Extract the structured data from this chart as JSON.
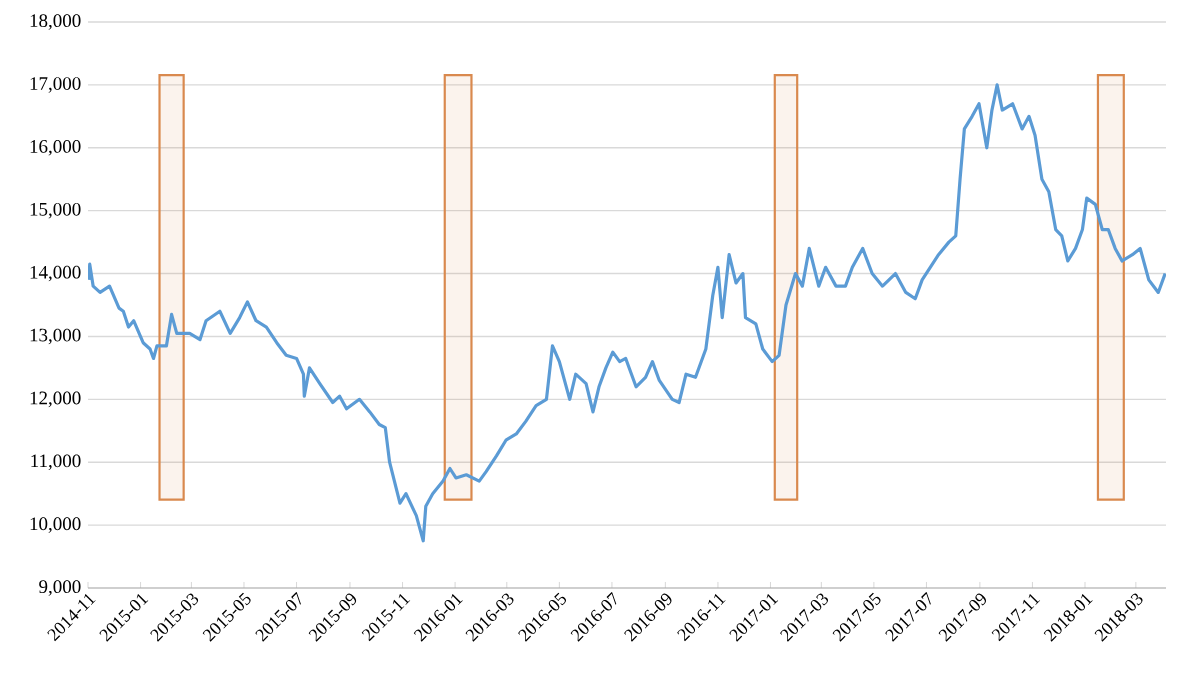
{
  "chart_data": {
    "type": "line",
    "x": [
      "2014-11-02",
      "2014-11-03",
      "2014-11-07",
      "2014-11-15",
      "2014-11-26",
      "2014-12-07",
      "2014-12-12",
      "2014-12-18",
      "2014-12-24",
      "2015-01-04",
      "2015-01-12",
      "2015-01-16",
      "2015-01-20",
      "2015-01-31",
      "2015-02-06",
      "2015-02-12",
      "2015-02-27",
      "2015-03-11",
      "2015-03-18",
      "2015-04-03",
      "2015-04-15",
      "2015-04-26",
      "2015-05-05",
      "2015-05-15",
      "2015-05-27",
      "2015-06-08",
      "2015-06-19",
      "2015-07-01",
      "2015-07-09",
      "2015-07-10",
      "2015-07-16",
      "2015-07-28",
      "2015-08-12",
      "2015-08-20",
      "2015-08-28",
      "2015-09-12",
      "2015-09-24",
      "2015-10-05",
      "2015-10-12",
      "2015-10-17",
      "2015-10-29",
      "2015-11-05",
      "2015-11-17",
      "2015-11-25",
      "2015-11-28",
      "2015-12-06",
      "2015-12-18",
      "2015-12-26",
      "2016-01-02",
      "2016-01-14",
      "2016-01-29",
      "2016-02-06",
      "2016-02-18",
      "2016-02-29",
      "2016-03-12",
      "2016-03-23",
      "2016-04-04",
      "2016-04-16",
      "2016-04-23",
      "2016-05-01",
      "2016-05-13",
      "2016-05-20",
      "2016-06-01",
      "2016-06-09",
      "2016-06-16",
      "2016-06-24",
      "2016-07-02",
      "2016-07-10",
      "2016-07-17",
      "2016-07-29",
      "2016-08-09",
      "2016-08-17",
      "2016-08-25",
      "2016-09-09",
      "2016-09-17",
      "2016-09-25",
      "2016-10-06",
      "2016-10-18",
      "2016-10-26",
      "2016-11-01",
      "2016-11-06",
      "2016-11-14",
      "2016-11-22",
      "2016-11-30",
      "2016-12-03",
      "2016-12-15",
      "2016-12-23",
      "2017-01-03",
      "2017-01-11",
      "2017-01-19",
      "2017-01-30",
      "2017-02-07",
      "2017-02-15",
      "2017-02-26",
      "2017-03-06",
      "2017-03-18",
      "2017-03-29",
      "2017-04-06",
      "2017-04-18",
      "2017-04-29",
      "2017-05-11",
      "2017-05-26",
      "2017-06-07",
      "2017-06-18",
      "2017-06-26",
      "2017-07-15",
      "2017-07-27",
      "2017-08-04",
      "2017-08-09",
      "2017-08-14",
      "2017-08-23",
      "2017-08-31",
      "2017-09-09",
      "2017-09-15",
      "2017-09-21",
      "2017-09-27",
      "2017-10-09",
      "2017-10-20",
      "2017-10-28",
      "2017-11-04",
      "2017-11-12",
      "2017-11-20",
      "2017-11-28",
      "2017-12-05",
      "2017-12-12",
      "2017-12-21",
      "2017-12-29",
      "2018-01-03",
      "2018-01-13",
      "2018-01-21",
      "2018-01-28",
      "2018-02-05",
      "2018-02-13",
      "2018-02-25",
      "2018-03-06",
      "2018-03-16",
      "2018-03-27",
      "2018-04-04"
    ],
    "series": [
      {
        "color": "#5b9bd5",
        "values": [
          13900,
          14150,
          13800,
          13700,
          13800,
          13450,
          13400,
          13150,
          13250,
          12900,
          12800,
          12650,
          12850,
          12850,
          13350,
          13050,
          13050,
          12950,
          13250,
          13400,
          13050,
          13300,
          13550,
          13250,
          13150,
          12900,
          12700,
          12650,
          12400,
          12050,
          12500,
          12250,
          11950,
          12050,
          11850,
          12000,
          11800,
          11600,
          11550,
          11000,
          10350,
          10500,
          10150,
          9750,
          10300,
          10500,
          10700,
          10900,
          10750,
          10800,
          10700,
          10850,
          11100,
          11350,
          11450,
          11650,
          11900,
          12000,
          12850,
          12600,
          12000,
          12400,
          12250,
          11800,
          12200,
          12500,
          12750,
          12600,
          12650,
          12200,
          12350,
          12600,
          12300,
          12000,
          11950,
          12400,
          12350,
          12800,
          13650,
          14100,
          13300,
          14300,
          13850,
          14000,
          13300,
          13200,
          12800,
          12600,
          12700,
          13500,
          14000,
          13800,
          14400,
          13800,
          14100,
          13800,
          13800,
          14100,
          14400,
          14000,
          13800,
          14000,
          13700,
          13600,
          13900,
          14300,
          14500,
          14600,
          15500,
          16300,
          16500,
          16700,
          16000,
          16600,
          17000,
          16600,
          16700,
          16300,
          16500,
          16200,
          15500,
          15300,
          14700,
          14600,
          14200,
          14400,
          14700,
          15200,
          15100,
          14700,
          14700,
          14400,
          14200,
          14300,
          14400,
          13900,
          13700,
          14000
        ]
      }
    ],
    "xlim": [
      "2014-11-01",
      "2018-04-05"
    ],
    "xticks": [
      "2014-11",
      "2015-01",
      "2015-03",
      "2015-05",
      "2015-07",
      "2015-09",
      "2015-11",
      "2016-01",
      "2016-03",
      "2016-05",
      "2016-07",
      "2016-09",
      "2016-11",
      "2017-01",
      "2017-03",
      "2017-05",
      "2017-07",
      "2017-09",
      "2017-11",
      "2018-01",
      "2018-03"
    ],
    "ylim": [
      9000,
      18000
    ],
    "yticks": [
      {
        "value": 9000,
        "label": "9,000"
      },
      {
        "value": 10000,
        "label": "10,000"
      },
      {
        "value": 11000,
        "label": "11,000"
      },
      {
        "value": 12000,
        "label": "12,000"
      },
      {
        "value": 13000,
        "label": "13,000"
      },
      {
        "value": 14000,
        "label": "14,000"
      },
      {
        "value": 15000,
        "label": "15,000"
      },
      {
        "value": 16000,
        "label": "16,000"
      },
      {
        "value": 17000,
        "label": "17,000"
      },
      {
        "value": 18000,
        "label": "18,000"
      }
    ],
    "grid": "y",
    "marker": "none",
    "line_style": "solid",
    "bands": [
      {
        "axis": "x",
        "from": "2015-01-23",
        "to": "2015-02-20",
        "color": "#d9894e"
      },
      {
        "axis": "x",
        "from": "2015-12-20",
        "to": "2016-01-20",
        "color": "#d9894e"
      },
      {
        "axis": "x",
        "from": "2017-01-06",
        "to": "2017-02-01",
        "color": "#d9894e"
      },
      {
        "axis": "x",
        "from": "2018-01-16",
        "to": "2018-02-15",
        "color": "#d9894e"
      }
    ]
  }
}
